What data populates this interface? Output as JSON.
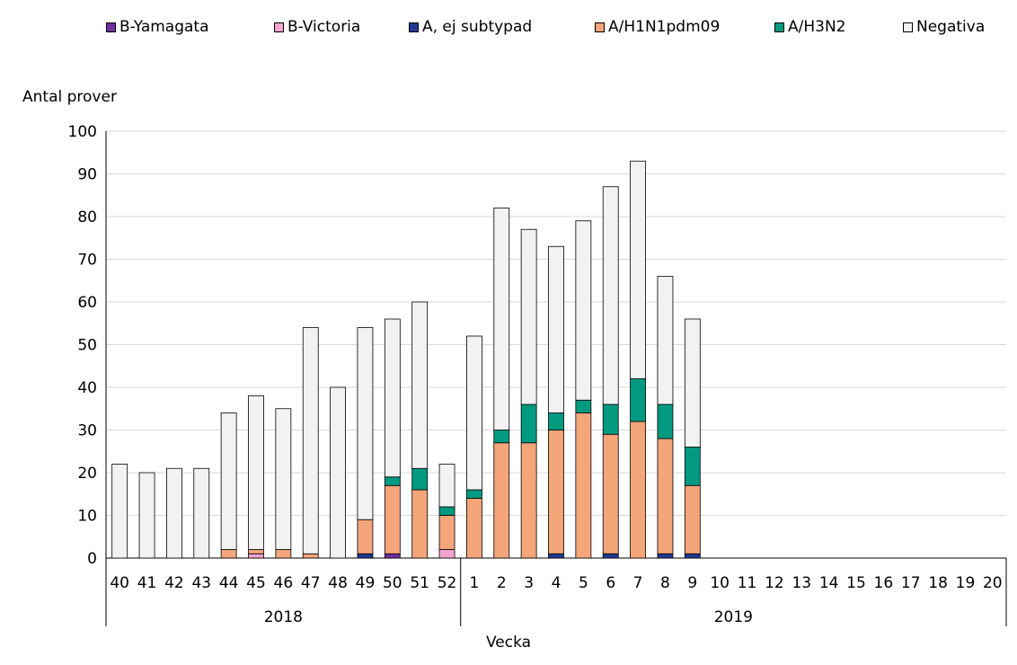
{
  "chart_data": {
    "type": "bar",
    "stacked": true,
    "ylabel": "Antal prover",
    "xlabel": "Vecka",
    "ylim": [
      0,
      100
    ],
    "yticks": [
      0,
      10,
      20,
      30,
      40,
      50,
      60,
      70,
      80,
      90,
      100
    ],
    "grid": true,
    "legend_position": "top",
    "categories": [
      "40",
      "41",
      "42",
      "43",
      "44",
      "45",
      "46",
      "47",
      "48",
      "49",
      "50",
      "51",
      "52",
      "1",
      "2",
      "3",
      "4",
      "5",
      "6",
      "7",
      "8",
      "9",
      "10",
      "11",
      "12",
      "13",
      "14",
      "15",
      "16",
      "17",
      "18",
      "19",
      "20"
    ],
    "year_groups": [
      {
        "label": "2018",
        "count": 13
      },
      {
        "label": "2019",
        "count": 20
      }
    ],
    "series": [
      {
        "name": "B-Yamagata",
        "color": "#7030a0",
        "values": [
          0,
          0,
          0,
          0,
          0,
          0,
          0,
          0,
          0,
          0,
          1,
          0,
          0,
          0,
          0,
          0,
          0,
          0,
          0,
          0,
          0,
          0,
          0,
          0,
          0,
          0,
          0,
          0,
          0,
          0,
          0,
          0,
          0
        ]
      },
      {
        "name": "B-Victoria",
        "color": "#f4a3d0",
        "values": [
          0,
          0,
          0,
          0,
          0,
          1,
          0,
          0,
          0,
          0,
          0,
          0,
          2,
          0,
          0,
          0,
          0,
          0,
          0,
          0,
          0,
          0,
          0,
          0,
          0,
          0,
          0,
          0,
          0,
          0,
          0,
          0,
          0
        ]
      },
      {
        "name": "A, ej subtypad",
        "color": "#1f3a93",
        "values": [
          0,
          0,
          0,
          0,
          0,
          0,
          0,
          0,
          0,
          1,
          0,
          0,
          0,
          0,
          0,
          0,
          1,
          0,
          1,
          0,
          1,
          1,
          0,
          0,
          0,
          0,
          0,
          0,
          0,
          0,
          0,
          0,
          0
        ]
      },
      {
        "name": "A/H1N1pdm09",
        "color": "#f4a57a",
        "values": [
          0,
          0,
          0,
          0,
          2,
          1,
          2,
          1,
          0,
          8,
          16,
          16,
          8,
          14,
          27,
          27,
          29,
          34,
          28,
          32,
          27,
          16,
          0,
          0,
          0,
          0,
          0,
          0,
          0,
          0,
          0,
          0,
          0
        ]
      },
      {
        "name": "A/H3N2",
        "color": "#009a80",
        "values": [
          0,
          0,
          0,
          0,
          0,
          0,
          0,
          0,
          0,
          0,
          2,
          5,
          2,
          2,
          3,
          9,
          4,
          3,
          7,
          10,
          8,
          9,
          0,
          0,
          0,
          0,
          0,
          0,
          0,
          0,
          0,
          0,
          0
        ]
      },
      {
        "name": "Negativa",
        "color": "#f2f2f2",
        "values": [
          22,
          20,
          21,
          21,
          32,
          36,
          33,
          53,
          40,
          45,
          37,
          39,
          10,
          36,
          52,
          41,
          39,
          42,
          51,
          51,
          30,
          30,
          0,
          0,
          0,
          0,
          0,
          0,
          0,
          0,
          0,
          0,
          0
        ]
      }
    ]
  }
}
